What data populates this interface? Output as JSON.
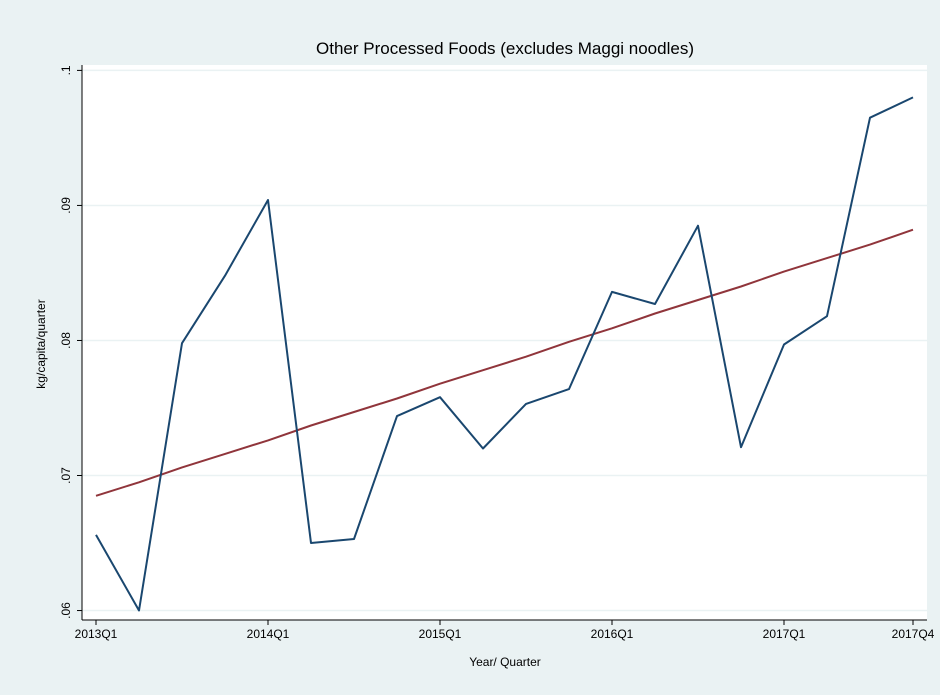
{
  "chart_data": {
    "type": "line",
    "title": "Other Processed Foods (excludes Maggi noodles)",
    "xlabel": "Year/ Quarter",
    "ylabel": "kg/capita/quarter",
    "x_tick_labels": [
      "2013Q1",
      "2014Q1",
      "2015Q1",
      "2016Q1",
      "2017Q1",
      "2017Q4"
    ],
    "y_tick_labels": [
      ".06",
      ".07",
      ".08",
      ".09",
      ".1"
    ],
    "y_ticks": [
      0.06,
      0.07,
      0.08,
      0.09,
      0.1
    ],
    "ylim": [
      0.0593,
      0.1004
    ],
    "grid": true,
    "colors": {
      "plot_background": "#ffffff",
      "outer_background": "#eaf2f3",
      "gridline": "#eaf2f3",
      "series_line": "#1a476f",
      "fit_line": "#90353b"
    },
    "categories": [
      "2013Q1",
      "2013Q2",
      "2013Q3",
      "2013Q4",
      "2014Q1",
      "2014Q2",
      "2014Q3",
      "2014Q4",
      "2015Q1",
      "2015Q2",
      "2015Q3",
      "2015Q4",
      "2016Q1",
      "2016Q2",
      "2016Q3",
      "2016Q4",
      "2017Q1",
      "2017Q2",
      "2017Q3",
      "2017Q4"
    ],
    "series": [
      {
        "role": "observed",
        "values": [
          0.0656,
          0.06,
          0.0798,
          0.0848,
          0.0904,
          0.065,
          0.0653,
          0.0744,
          0.0758,
          0.072,
          0.0753,
          0.0764,
          0.0836,
          0.0827,
          0.0885,
          0.0721,
          0.0797,
          0.0818,
          0.0965,
          0.098
        ]
      },
      {
        "role": "linear_fit",
        "values": [
          0.0685,
          0.0695,
          0.0706,
          0.0716,
          0.0726,
          0.0737,
          0.0747,
          0.0757,
          0.0768,
          0.0778,
          0.0788,
          0.0799,
          0.0809,
          0.082,
          0.083,
          0.084,
          0.0851,
          0.0861,
          0.0871,
          0.0882
        ]
      }
    ]
  }
}
